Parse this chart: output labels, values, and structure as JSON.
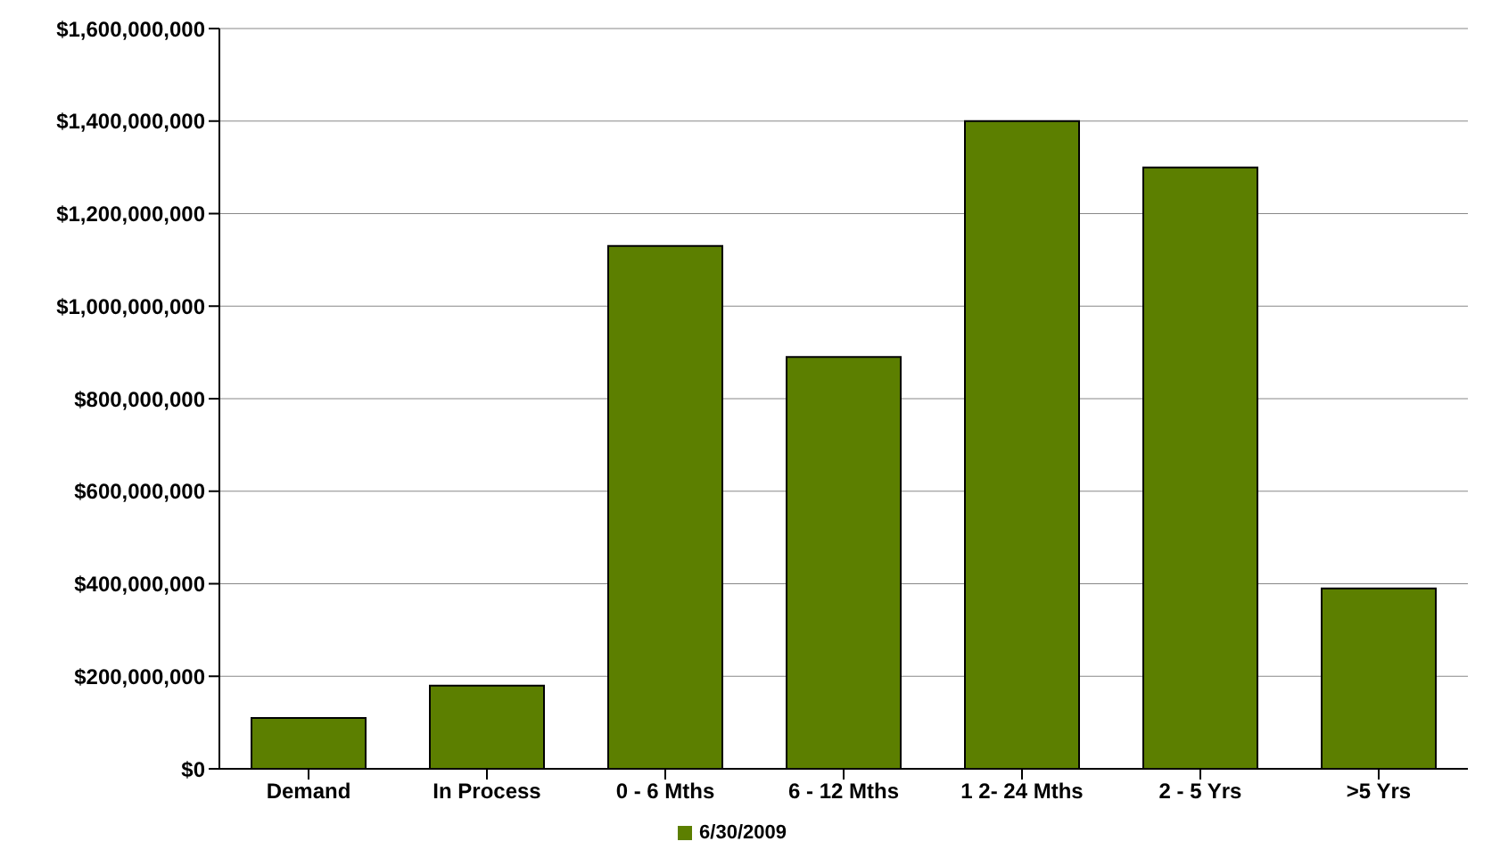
{
  "chart_data": {
    "type": "bar",
    "categories": [
      "Demand",
      "In Process",
      "0 - 6 Mths",
      "6 - 12 Mths",
      "1 2- 24 Mths",
      "2 - 5 Yrs",
      ">5 Yrs"
    ],
    "series": [
      {
        "name": "6/30/2009",
        "color": "#5c7f00",
        "values": [
          110000000,
          180000000,
          1130000000,
          890000000,
          1400000000,
          1300000000,
          390000000
        ]
      }
    ],
    "ylim": [
      0,
      1600000000
    ],
    "yticks": [
      {
        "value": 0,
        "label": "$0"
      },
      {
        "value": 200000000,
        "label": "$200,000,000"
      },
      {
        "value": 400000000,
        "label": "$400,000,000"
      },
      {
        "value": 600000000,
        "label": "$600,000,000"
      },
      {
        "value": 800000000,
        "label": "$800,000,000"
      },
      {
        "value": 1000000000,
        "label": "$1,000,000,000"
      },
      {
        "value": 1200000000,
        "label": "$1,200,000,000"
      },
      {
        "value": 1400000000,
        "label": "$1,400,000,000"
      },
      {
        "value": 1600000000,
        "label": "$1,600,000,000"
      }
    ],
    "grid": "y",
    "legend": "bottom"
  }
}
